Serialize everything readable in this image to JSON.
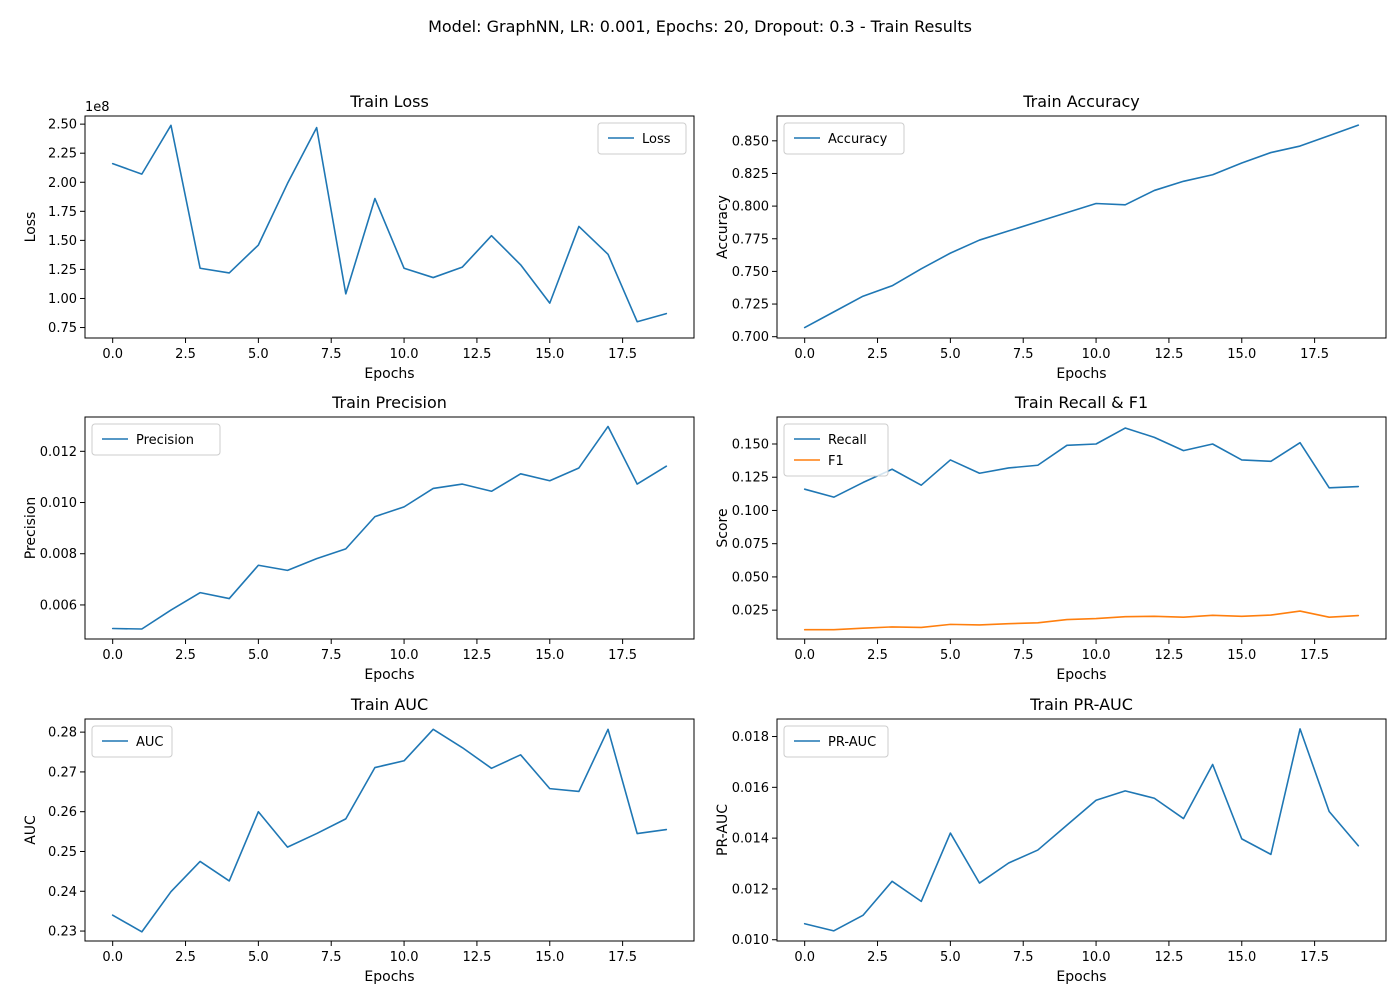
{
  "figure": {
    "suptitle": "Model: GraphNN, LR: 0.001, Epochs: 20, Dropout: 0.3 - Train Results"
  },
  "colors": {
    "blue": "#1f77b4",
    "orange": "#ff7f0e",
    "axis": "#000000",
    "legend_border": "#cccccc"
  },
  "chart_data": [
    {
      "type": "line",
      "title": "Train Loss",
      "xlabel": "Epochs",
      "ylabel": "Loss",
      "offset_text": "1e8",
      "xlim": [
        -0.95,
        19.95
      ],
      "ylim": [
        0.66,
        2.57
      ],
      "xticks": [
        0,
        2.5,
        5,
        7.5,
        10,
        12.5,
        15,
        17.5
      ],
      "xtick_labels": [
        "0.0",
        "2.5",
        "5.0",
        "7.5",
        "10.0",
        "12.5",
        "15.0",
        "17.5"
      ],
      "yticks": [
        0.75,
        1.0,
        1.25,
        1.5,
        1.75,
        2.0,
        2.25,
        2.5
      ],
      "ytick_labels": [
        "0.75",
        "1.00",
        "1.25",
        "1.50",
        "1.75",
        "2.00",
        "2.25",
        "2.50"
      ],
      "legend_loc": "upper right",
      "grid": false,
      "x": [
        0,
        1,
        2,
        3,
        4,
        5,
        6,
        7,
        8,
        9,
        10,
        11,
        12,
        13,
        14,
        15,
        16,
        17,
        18,
        19
      ],
      "series": [
        {
          "name": "Loss",
          "color": "#1f77b4",
          "values": [
            2.16,
            2.07,
            2.49,
            1.26,
            1.22,
            1.46,
            1.99,
            2.47,
            1.04,
            1.86,
            1.26,
            1.18,
            1.27,
            1.54,
            1.29,
            0.96,
            1.62,
            1.38,
            0.8,
            0.87
          ]
        }
      ]
    },
    {
      "type": "line",
      "title": "Train Accuracy",
      "xlabel": "Epochs",
      "ylabel": "Accuracy",
      "xlim": [
        -0.95,
        19.95
      ],
      "ylim": [
        0.699,
        0.869
      ],
      "xticks": [
        0,
        2.5,
        5,
        7.5,
        10,
        12.5,
        15,
        17.5
      ],
      "xtick_labels": [
        "0.0",
        "2.5",
        "5.0",
        "7.5",
        "10.0",
        "12.5",
        "15.0",
        "17.5"
      ],
      "yticks": [
        0.7,
        0.725,
        0.75,
        0.775,
        0.8,
        0.825,
        0.85
      ],
      "ytick_labels": [
        "0.700",
        "0.725",
        "0.750",
        "0.775",
        "0.800",
        "0.825",
        "0.850"
      ],
      "legend_loc": "upper left",
      "grid": false,
      "x": [
        0,
        1,
        2,
        3,
        4,
        5,
        6,
        7,
        8,
        9,
        10,
        11,
        12,
        13,
        14,
        15,
        16,
        17,
        18,
        19
      ],
      "series": [
        {
          "name": "Accuracy",
          "color": "#1f77b4",
          "values": [
            0.707,
            0.719,
            0.731,
            0.739,
            0.752,
            0.764,
            0.774,
            0.781,
            0.788,
            0.795,
            0.802,
            0.801,
            0.812,
            0.819,
            0.824,
            0.833,
            0.841,
            0.846,
            0.854,
            0.862
          ]
        }
      ]
    },
    {
      "type": "line",
      "title": "Train Precision",
      "xlabel": "Epochs",
      "ylabel": "Precision",
      "xlim": [
        -0.95,
        19.95
      ],
      "ylim": [
        0.00467,
        0.01334
      ],
      "xticks": [
        0,
        2.5,
        5,
        7.5,
        10,
        12.5,
        15,
        17.5
      ],
      "xtick_labels": [
        "0.0",
        "2.5",
        "5.0",
        "7.5",
        "10.0",
        "12.5",
        "15.0",
        "17.5"
      ],
      "yticks": [
        0.006,
        0.008,
        0.01,
        0.012
      ],
      "ytick_labels": [
        "0.006",
        "0.008",
        "0.010",
        "0.012"
      ],
      "legend_loc": "upper left",
      "grid": false,
      "x": [
        0,
        1,
        2,
        3,
        4,
        5,
        6,
        7,
        8,
        9,
        10,
        11,
        12,
        13,
        14,
        15,
        16,
        17,
        18,
        19
      ],
      "series": [
        {
          "name": "Precision",
          "color": "#1f77b4",
          "values": [
            0.00508,
            0.00506,
            0.0058,
            0.00648,
            0.00625,
            0.00755,
            0.00735,
            0.00781,
            0.00819,
            0.00945,
            0.00983,
            0.01055,
            0.01072,
            0.01044,
            0.01112,
            0.01085,
            0.01135,
            0.01297,
            0.01072,
            0.01142
          ]
        }
      ]
    },
    {
      "type": "line",
      "title": "Train Recall & F1",
      "xlabel": "Epochs",
      "ylabel": "Score",
      "xlim": [
        -0.95,
        19.95
      ],
      "ylim": [
        0.0033,
        0.1703
      ],
      "xticks": [
        0,
        2.5,
        5,
        7.5,
        10,
        12.5,
        15,
        17.5
      ],
      "xtick_labels": [
        "0.0",
        "2.5",
        "5.0",
        "7.5",
        "10.0",
        "12.5",
        "15.0",
        "17.5"
      ],
      "yticks": [
        0.025,
        0.05,
        0.075,
        0.1,
        0.125,
        0.15
      ],
      "ytick_labels": [
        "0.025",
        "0.050",
        "0.075",
        "0.100",
        "0.125",
        "0.150"
      ],
      "legend_loc": "upper left",
      "grid": false,
      "x": [
        0,
        1,
        2,
        3,
        4,
        5,
        6,
        7,
        8,
        9,
        10,
        11,
        12,
        13,
        14,
        15,
        16,
        17,
        18,
        19
      ],
      "series": [
        {
          "name": "Recall",
          "color": "#1f77b4",
          "values": [
            0.116,
            0.11,
            0.121,
            0.131,
            0.119,
            0.138,
            0.128,
            0.132,
            0.134,
            0.149,
            0.15,
            0.162,
            0.155,
            0.145,
            0.15,
            0.138,
            0.137,
            0.151,
            0.117,
            0.118
          ]
        },
        {
          "name": "F1",
          "color": "#ff7f0e",
          "values": [
            0.0103,
            0.0103,
            0.0114,
            0.0124,
            0.012,
            0.0143,
            0.0139,
            0.0148,
            0.0155,
            0.0179,
            0.0187,
            0.0201,
            0.0204,
            0.0197,
            0.0211,
            0.0204,
            0.0213,
            0.0243,
            0.0197,
            0.0209
          ]
        }
      ]
    },
    {
      "type": "line",
      "title": "Train AUC",
      "xlabel": "Epochs",
      "ylabel": "AUC",
      "xlim": [
        -0.95,
        19.95
      ],
      "ylim": [
        0.2275,
        0.2833
      ],
      "xticks": [
        0,
        2.5,
        5,
        7.5,
        10,
        12.5,
        15,
        17.5
      ],
      "xtick_labels": [
        "0.0",
        "2.5",
        "5.0",
        "7.5",
        "10.0",
        "12.5",
        "15.0",
        "17.5"
      ],
      "yticks": [
        0.23,
        0.24,
        0.25,
        0.26,
        0.27,
        0.28
      ],
      "ytick_labels": [
        "0.23",
        "0.24",
        "0.25",
        "0.26",
        "0.27",
        "0.28"
      ],
      "legend_loc": "upper left",
      "grid": false,
      "x": [
        0,
        1,
        2,
        3,
        4,
        5,
        6,
        7,
        8,
        9,
        10,
        11,
        12,
        13,
        14,
        15,
        16,
        17,
        18,
        19
      ],
      "series": [
        {
          "name": "AUC",
          "color": "#1f77b4",
          "values": [
            0.234,
            0.2298,
            0.2399,
            0.2475,
            0.2426,
            0.26,
            0.2511,
            0.2545,
            0.2582,
            0.2711,
            0.2728,
            0.2807,
            0.2761,
            0.2709,
            0.2743,
            0.2658,
            0.2651,
            0.2807,
            0.2545,
            0.2555
          ]
        }
      ]
    },
    {
      "type": "line",
      "title": "Train PR-AUC",
      "xlabel": "Epochs",
      "ylabel": "PR-AUC",
      "xlim": [
        -0.95,
        19.95
      ],
      "ylim": [
        0.00995,
        0.01869
      ],
      "xticks": [
        0,
        2.5,
        5,
        7.5,
        10,
        12.5,
        15,
        17.5
      ],
      "xtick_labels": [
        "0.0",
        "2.5",
        "5.0",
        "7.5",
        "10.0",
        "12.5",
        "15.0",
        "17.5"
      ],
      "yticks": [
        0.01,
        0.012,
        0.014,
        0.016,
        0.018
      ],
      "ytick_labels": [
        "0.010",
        "0.012",
        "0.014",
        "0.016",
        "0.018"
      ],
      "legend_loc": "upper left",
      "grid": false,
      "x": [
        0,
        1,
        2,
        3,
        4,
        5,
        6,
        7,
        8,
        9,
        10,
        11,
        12,
        13,
        14,
        15,
        16,
        17,
        18,
        19
      ],
      "series": [
        {
          "name": "PR-AUC",
          "color": "#1f77b4",
          "values": [
            0.01063,
            0.01035,
            0.01096,
            0.0123,
            0.01151,
            0.0142,
            0.01223,
            0.01302,
            0.01353,
            0.01451,
            0.01549,
            0.01586,
            0.01557,
            0.01477,
            0.0169,
            0.01397,
            0.01336,
            0.0183,
            0.01505,
            0.0137
          ]
        }
      ]
    }
  ]
}
